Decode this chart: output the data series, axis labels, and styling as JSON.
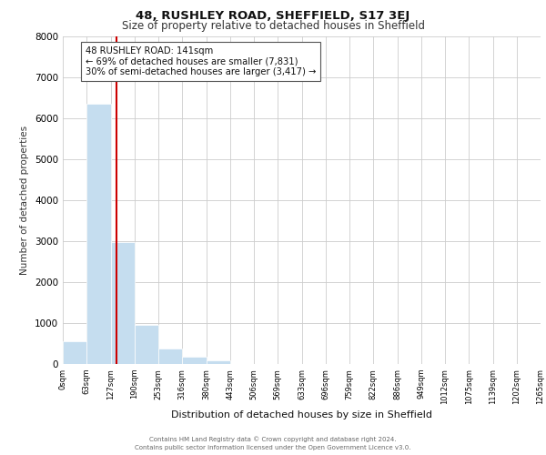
{
  "title": "48, RUSHLEY ROAD, SHEFFIELD, S17 3EJ",
  "subtitle": "Size of property relative to detached houses in Sheffield",
  "xlabel": "Distribution of detached houses by size in Sheffield",
  "ylabel": "Number of detached properties",
  "bin_edges": [
    0,
    63,
    127,
    190,
    253,
    316,
    380,
    443,
    506,
    569,
    633,
    696,
    759,
    822,
    886,
    949,
    1012,
    1075,
    1139,
    1202,
    1265
  ],
  "bin_labels": [
    "0sqm",
    "63sqm",
    "127sqm",
    "190sqm",
    "253sqm",
    "316sqm",
    "380sqm",
    "443sqm",
    "506sqm",
    "569sqm",
    "633sqm",
    "696sqm",
    "759sqm",
    "822sqm",
    "886sqm",
    "949sqm",
    "1012sqm",
    "1075sqm",
    "1139sqm",
    "1202sqm",
    "1265sqm"
  ],
  "bar_heights": [
    560,
    6350,
    2970,
    960,
    370,
    175,
    90,
    0,
    0,
    0,
    0,
    0,
    0,
    0,
    0,
    0,
    0,
    0,
    0,
    0
  ],
  "bar_color": "#c5ddef",
  "bar_edge_color": "#ffffff",
  "property_line_x": 141,
  "property_line_color": "#cc0000",
  "annotation_line1": "48 RUSHLEY ROAD: 141sqm",
  "annotation_line2": "← 69% of detached houses are smaller (7,831)",
  "annotation_line3": "30% of semi-detached houses are larger (3,417) →",
  "annotation_box_color": "#ffffff",
  "annotation_box_edge_color": "#555555",
  "ylim": [
    0,
    8000
  ],
  "yticks": [
    0,
    1000,
    2000,
    3000,
    4000,
    5000,
    6000,
    7000,
    8000
  ],
  "grid_color": "#cccccc",
  "background_color": "#ffffff",
  "footer_line1": "Contains HM Land Registry data © Crown copyright and database right 2024.",
  "footer_line2": "Contains public sector information licensed under the Open Government Licence v3.0."
}
